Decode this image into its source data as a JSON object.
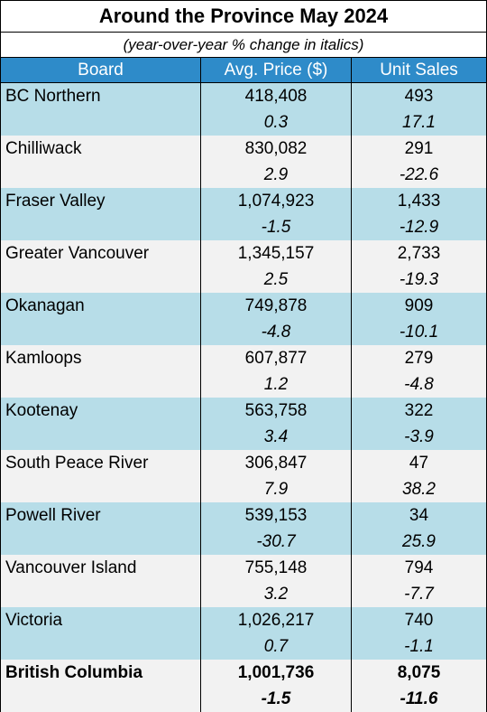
{
  "title": "Around the Province May 2024",
  "subtitle": "(year-over-year % change in italics)",
  "columns": [
    "Board",
    "Avg. Price ($)",
    "Unit Sales"
  ],
  "rows": [
    {
      "board": "BC Northern",
      "price": "418,408",
      "price_pct": "0.3",
      "sales": "493",
      "sales_pct": "17.1"
    },
    {
      "board": "Chilliwack",
      "price": "830,082",
      "price_pct": "2.9",
      "sales": "291",
      "sales_pct": "-22.6"
    },
    {
      "board": "Fraser Valley",
      "price": "1,074,923",
      "price_pct": "-1.5",
      "sales": "1,433",
      "sales_pct": "-12.9"
    },
    {
      "board": "Greater Vancouver",
      "price": "1,345,157",
      "price_pct": "2.5",
      "sales": "2,733",
      "sales_pct": "-19.3"
    },
    {
      "board": "Okanagan",
      "price": "749,878",
      "price_pct": "-4.8",
      "sales": "909",
      "sales_pct": "-10.1"
    },
    {
      "board": "Kamloops",
      "price": "607,877",
      "price_pct": "1.2",
      "sales": "279",
      "sales_pct": "-4.8"
    },
    {
      "board": "Kootenay",
      "price": "563,758",
      "price_pct": "3.4",
      "sales": "322",
      "sales_pct": "-3.9"
    },
    {
      "board": "South Peace River",
      "price": "306,847",
      "price_pct": "7.9",
      "sales": "47",
      "sales_pct": "38.2"
    },
    {
      "board": "Powell River",
      "price": "539,153",
      "price_pct": "-30.7",
      "sales": "34",
      "sales_pct": "25.9"
    },
    {
      "board": "Vancouver Island",
      "price": "755,148",
      "price_pct": "3.2",
      "sales": "794",
      "sales_pct": "-7.7"
    },
    {
      "board": "Victoria",
      "price": "1,026,217",
      "price_pct": "0.7",
      "sales": "740",
      "sales_pct": "-1.1"
    }
  ],
  "total": {
    "board": "British Columbia",
    "price": "1,001,736",
    "price_pct": "-1.5",
    "sales": "8,075",
    "sales_pct": "-11.6"
  },
  "colors": {
    "header_bg": "#2e8bc9",
    "row_blue": "#b7dde8",
    "row_grey": "#f2f2f2"
  }
}
